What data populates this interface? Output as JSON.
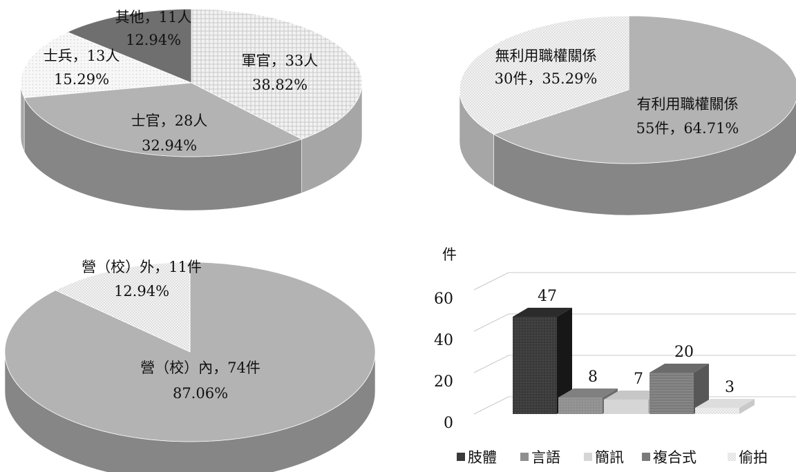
{
  "chart_data": [
    {
      "type": "pie",
      "slices": [
        {
          "label": "軍官，33人",
          "value": 33,
          "percent": "38.82%",
          "fill": "pat-cross"
        },
        {
          "label": "士官，28人",
          "value": 28,
          "percent": "32.94%",
          "fill": "#b3b3b3"
        },
        {
          "label": "士兵，13人",
          "value": 13,
          "percent": "15.29%",
          "fill": "pat-light"
        },
        {
          "label": "其他，11人",
          "value": 11,
          "percent": "12.94%",
          "fill": "#6f6f6f"
        }
      ]
    },
    {
      "type": "pie",
      "slices": [
        {
          "label": "有利用職權關係",
          "sublabel": "55件，64.71%",
          "value": 55,
          "fill": "#b3b3b3"
        },
        {
          "label": "無利用職權關係",
          "sublabel": "30件，35.29%",
          "value": 30,
          "fill": "pat-dots"
        }
      ]
    },
    {
      "type": "pie",
      "slices": [
        {
          "label": "營（校）內，74件",
          "value": 74,
          "percent": "87.06%",
          "fill": "#b3b3b3"
        },
        {
          "label": "營（校）外，11件",
          "value": 11,
          "percent": "12.94%",
          "fill": "pat-dots"
        }
      ]
    },
    {
      "type": "bar",
      "ylabel": "件",
      "ylim": [
        0,
        60
      ],
      "yticks": [
        "0",
        "20",
        "40",
        "60"
      ],
      "categories": [
        "肢體",
        "言語",
        "簡訊",
        "複合式",
        "偷拍"
      ],
      "values": [
        47,
        8,
        7,
        20,
        3
      ],
      "colors": [
        "#3a3a3a",
        "#8f8f8f",
        "#d6d6d6",
        "#7a7a7a",
        "#ececec"
      ],
      "legend": [
        "肢體",
        "言語",
        "簡訊",
        "複合式",
        "偷拍"
      ],
      "legend_position": "bottom"
    }
  ]
}
